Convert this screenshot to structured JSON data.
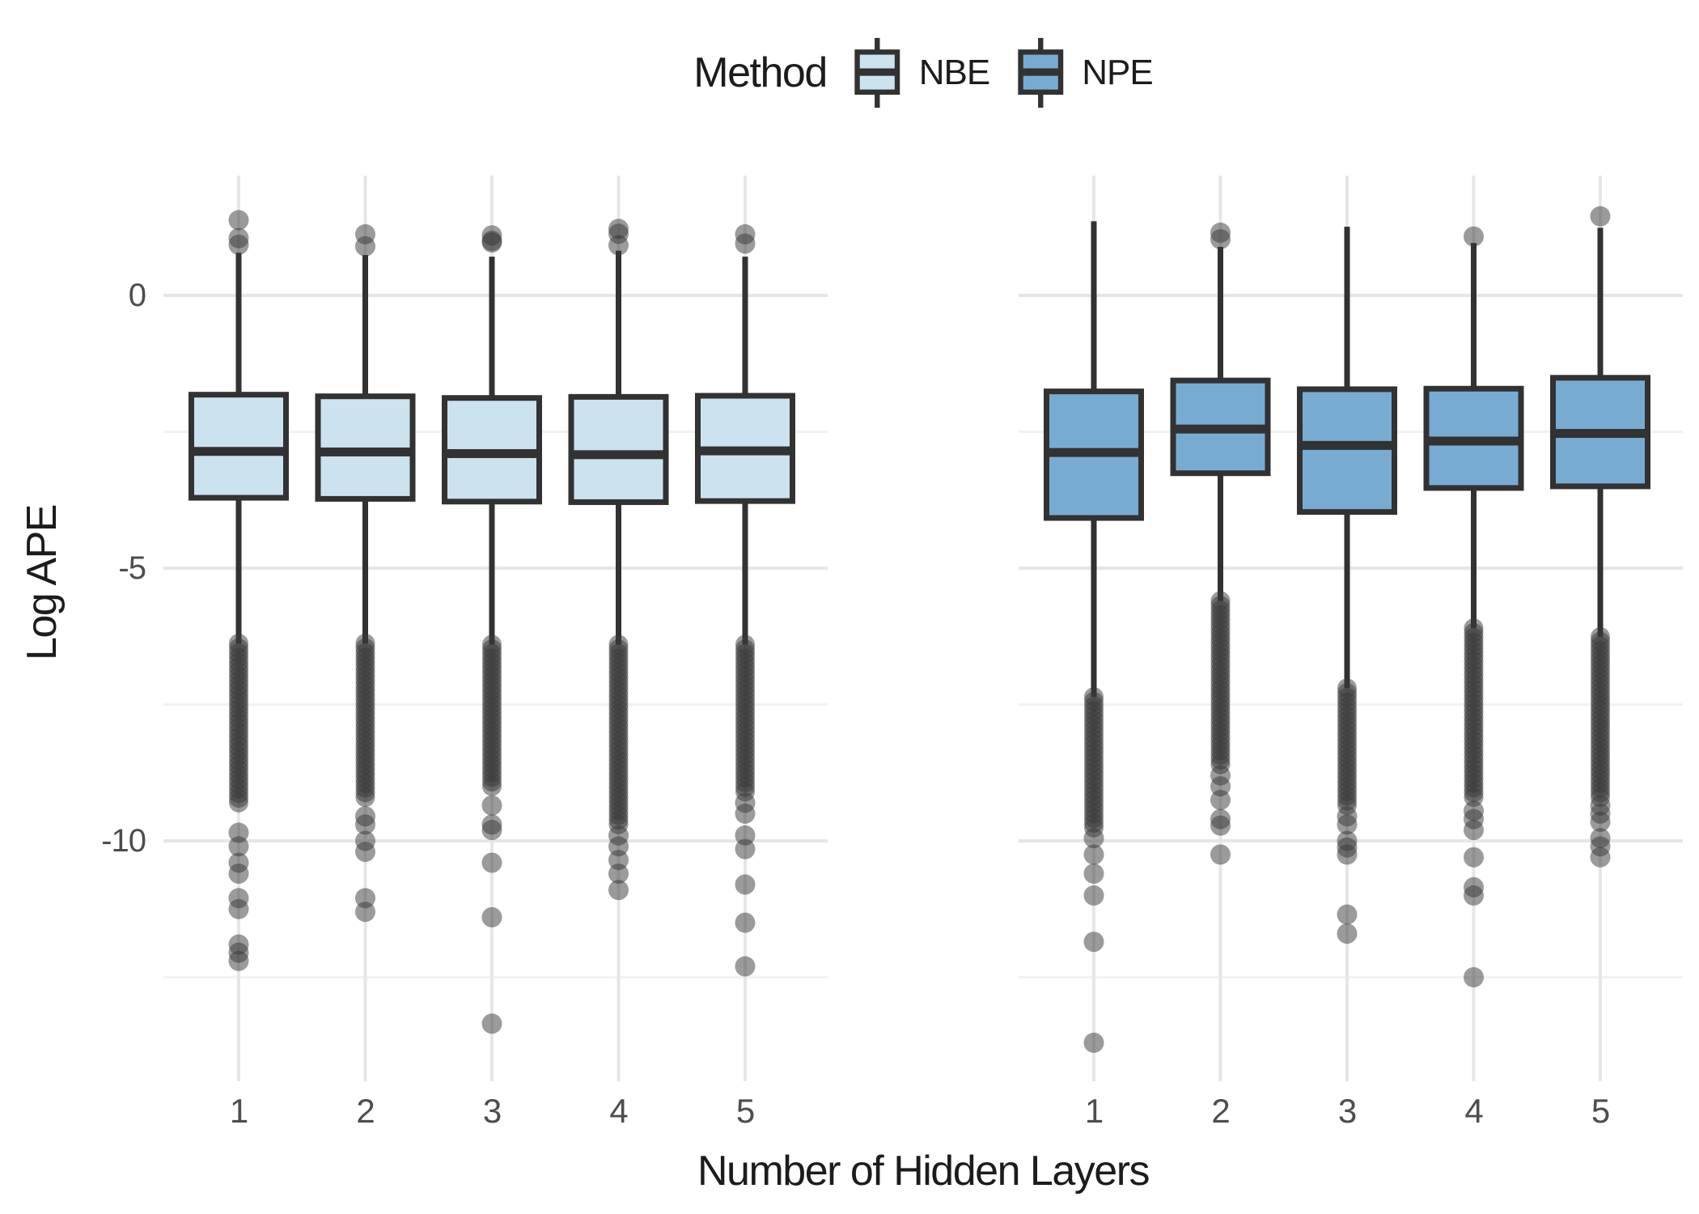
{
  "chart_data": {
    "type": "boxplot",
    "facet": "two panels sharing y axis, one per method",
    "legend": {
      "title": "Method",
      "position": "top-center",
      "items": [
        {
          "label": "NBE",
          "color": "#cbe2ef"
        },
        {
          "label": "NPE",
          "color": "#78abd2"
        }
      ]
    },
    "xlabel": "Number of Hidden Layers",
    "ylabel": "Log APE",
    "categories": [
      "1",
      "2",
      "3",
      "4",
      "5"
    ],
    "y_axis": {
      "ticks": [
        {
          "value": 0,
          "label": "0"
        },
        {
          "value": -5,
          "label": "-5"
        },
        {
          "value": -10,
          "label": "-10"
        }
      ],
      "minor": [
        -2.5,
        -7.5,
        -12.5
      ],
      "range": [
        -14.4,
        2.2
      ],
      "grid": "light gray on white"
    },
    "stroke_color": "#323232",
    "outlier_color": "rgba(55,55,55,0.5)",
    "panels": [
      {
        "method": "NBE",
        "boxes": [
          {
            "category": "1",
            "q1": -3.71,
            "median": -2.86,
            "q3": -1.82,
            "whisker_high": 0.78,
            "whisker_low": -6.38,
            "dense_outliers_low": [
              -6.38,
              -9.3
            ],
            "outliers_low": [
              -9.85,
              -10.1,
              -10.4,
              -10.6,
              -11.05,
              -11.25,
              -11.9,
              -12.05,
              -12.2
            ],
            "outliers_high": [
              1.38,
              1.05,
              0.93
            ]
          },
          {
            "category": "2",
            "q1": -3.73,
            "median": -2.87,
            "q3": -1.85,
            "whisker_high": 0.74,
            "whisker_low": -6.38,
            "dense_outliers_low": [
              -6.38,
              -9.2
            ],
            "outliers_low": [
              -9.55,
              -9.7,
              -10.0,
              -10.2,
              -11.05,
              -11.3
            ],
            "outliers_high": [
              1.12,
              0.9
            ]
          },
          {
            "category": "3",
            "q1": -3.78,
            "median": -2.9,
            "q3": -1.88,
            "whisker_high": 0.71,
            "whisker_low": -6.4,
            "dense_outliers_low": [
              -6.4,
              -9.0
            ],
            "outliers_low": [
              -9.35,
              -9.7,
              -9.8,
              -10.4,
              -11.4,
              -13.35
            ],
            "outliers_high": [
              1.1,
              1.0,
              0.97
            ]
          },
          {
            "category": "4",
            "q1": -3.79,
            "median": -2.92,
            "q3": -1.86,
            "whisker_high": 0.82,
            "whisker_low": -6.4,
            "dense_outliers_low": [
              -6.4,
              -9.7
            ],
            "outliers_low": [
              -9.9,
              -10.1,
              -10.35,
              -10.6,
              -10.9
            ],
            "outliers_high": [
              1.22,
              1.13,
              0.92
            ]
          },
          {
            "category": "5",
            "q1": -3.77,
            "median": -2.85,
            "q3": -1.84,
            "whisker_high": 0.71,
            "whisker_low": -6.4,
            "dense_outliers_low": [
              -6.4,
              -9.1
            ],
            "outliers_low": [
              -9.3,
              -9.5,
              -9.9,
              -10.15,
              -10.8,
              -11.5,
              -12.3
            ],
            "outliers_high": [
              1.12,
              0.95
            ]
          }
        ]
      },
      {
        "method": "NPE",
        "boxes": [
          {
            "category": "1",
            "q1": -4.08,
            "median": -2.88,
            "q3": -1.76,
            "whisker_high": 1.36,
            "whisker_low": -7.36,
            "dense_outliers_low": [
              -7.36,
              -9.76
            ],
            "outliers_low": [
              -9.95,
              -10.25,
              -10.6,
              -11.0,
              -11.85,
              -13.7
            ],
            "outliers_high": []
          },
          {
            "category": "2",
            "q1": -3.26,
            "median": -2.45,
            "q3": -1.56,
            "whisker_high": 0.89,
            "whisker_low": -5.6,
            "dense_outliers_low": [
              -5.6,
              -8.6
            ],
            "outliers_low": [
              -8.8,
              -9.0,
              -9.25,
              -9.6,
              -9.72,
              -10.25
            ],
            "outliers_high": [
              1.15,
              1.03
            ]
          },
          {
            "category": "3",
            "q1": -3.97,
            "median": -2.75,
            "q3": -1.72,
            "whisker_high": 1.26,
            "whisker_low": -7.2,
            "dense_outliers_low": [
              -7.2,
              -9.35
            ],
            "outliers_low": [
              -9.55,
              -9.7,
              -10.0,
              -10.12,
              -10.25,
              -11.35,
              -11.7
            ],
            "outliers_high": []
          },
          {
            "category": "4",
            "q1": -3.53,
            "median": -2.67,
            "q3": -1.71,
            "whisker_high": 0.96,
            "whisker_low": -6.1,
            "dense_outliers_low": [
              -6.1,
              -9.2
            ],
            "outliers_low": [
              -9.45,
              -9.6,
              -9.8,
              -10.3,
              -10.85,
              -11.0,
              -12.5
            ],
            "outliers_high": [
              1.08
            ]
          },
          {
            "category": "5",
            "q1": -3.5,
            "median": -2.53,
            "q3": -1.51,
            "whisker_high": 1.24,
            "whisker_low": -6.26,
            "dense_outliers_low": [
              -6.26,
              -9.2
            ],
            "outliers_low": [
              -9.35,
              -9.5,
              -9.65,
              -9.95,
              -10.1,
              -10.3
            ],
            "outliers_high": [
              1.45
            ]
          }
        ]
      }
    ]
  }
}
